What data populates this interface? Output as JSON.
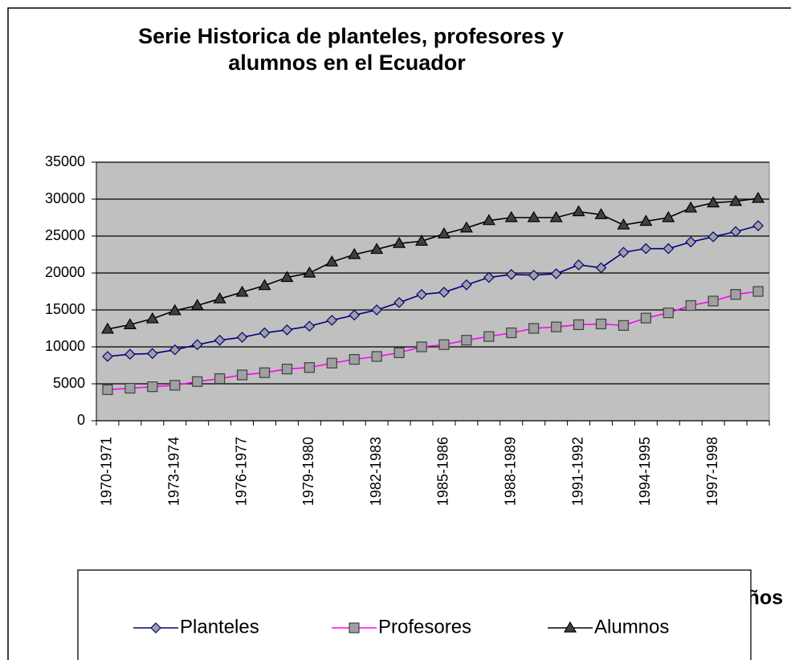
{
  "chart_data": {
    "type": "line",
    "title": [
      "Serie Historica de planteles, profesores y",
      "alumnos en el Ecuador"
    ],
    "x_label": "Años",
    "categories": [
      "1970-1971",
      null,
      null,
      "1973-1974",
      null,
      null,
      "1976-1977",
      null,
      null,
      "1979-1980",
      null,
      null,
      "1982-1983",
      null,
      null,
      "1985-1986",
      null,
      null,
      "1988-1989",
      null,
      null,
      "1991-1992",
      null,
      null,
      "1994-1995",
      null,
      null,
      "1997-1998",
      null,
      null
    ],
    "series": [
      {
        "name": "Planteles",
        "color": "#000080",
        "marker": "diamond",
        "values": [
          8700,
          9000,
          9100,
          9600,
          10300,
          10900,
          11300,
          11900,
          12300,
          12800,
          13600,
          14300,
          15000,
          16000,
          17100,
          17400,
          18400,
          19400,
          19800,
          19700,
          19900,
          21100,
          20700,
          22800,
          23300,
          23300,
          24200,
          24900,
          25600,
          26400
        ]
      },
      {
        "name": "Profesores",
        "color": "#ff00ff",
        "marker": "square",
        "values": [
          4200,
          4400,
          4600,
          4800,
          5300,
          5700,
          6200,
          6500,
          7000,
          7200,
          7800,
          8300,
          8700,
          9200,
          10000,
          10300,
          10900,
          11400,
          11900,
          12500,
          12700,
          13000,
          13100,
          12900,
          13900,
          14600,
          15600,
          16200,
          17100,
          17500
        ]
      },
      {
        "name": "Alumnos",
        "color": "#000000",
        "marker": "triangle",
        "values": [
          12400,
          13000,
          13800,
          14900,
          15600,
          16500,
          17400,
          18300,
          19400,
          20000,
          21500,
          22500,
          23200,
          24000,
          24300,
          25300,
          26100,
          27100,
          27500,
          27500,
          27500,
          28300,
          27900,
          26500,
          27000,
          27500,
          28800,
          29500,
          29700,
          30100
        ]
      }
    ],
    "ylim": [
      0,
      35000
    ],
    "yticks": [
      0,
      5000,
      10000,
      15000,
      20000,
      25000,
      30000,
      35000
    ],
    "grid": true,
    "plot_background": "#c0c0c0",
    "legend": "bottom"
  }
}
